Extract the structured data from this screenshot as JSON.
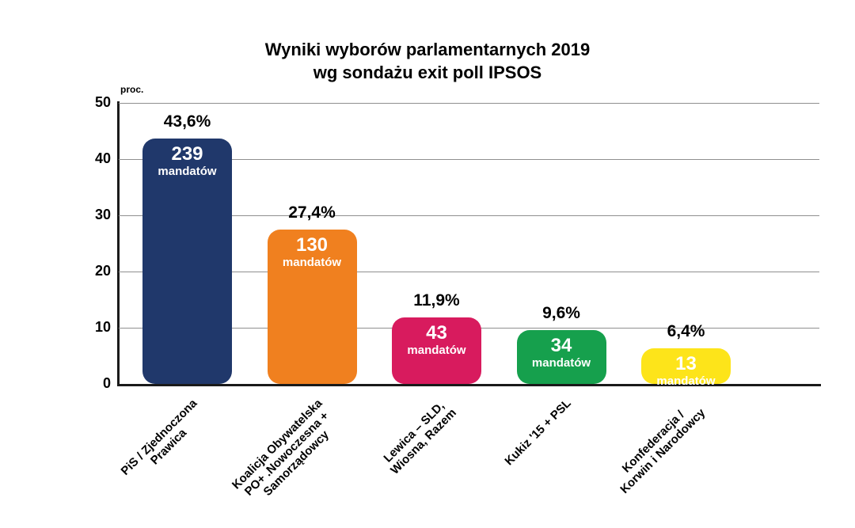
{
  "title": {
    "line1": "Wyniki wyborów parlamentarnych 2019",
    "line2": "wg sondażu exit poll IPSOS"
  },
  "y_axis_unit": "proc.",
  "chart_data": {
    "type": "bar",
    "title": "Wyniki wyborów parlamentarnych 2019 wg sondażu exit poll IPSOS",
    "ylabel": "proc.",
    "xlabel": "",
    "ylim": [
      0,
      50
    ],
    "yticks": [
      0,
      10,
      20,
      30,
      40,
      50
    ],
    "grid": true,
    "legend": false,
    "bars": [
      {
        "category_lines": [
          "PiS / Zjednoczona",
          "Prawica"
        ],
        "percent": 43.6,
        "percent_label": "43,6%",
        "mandates": 239,
        "mandates_label": "239",
        "mandates_unit": "mandatów",
        "color": "#20386b"
      },
      {
        "category_lines": [
          "Koalicja Obywatelska",
          "PO+ .Nowoczesna +",
          "Samorządowcy"
        ],
        "percent": 27.4,
        "percent_label": "27,4%",
        "mandates": 130,
        "mandates_label": "130",
        "mandates_unit": "mandatów",
        "color": "#f0801f"
      },
      {
        "category_lines": [
          "Lewica – SLD,",
          "Wiosna, Razem"
        ],
        "percent": 11.9,
        "percent_label": "11,9%",
        "mandates": 43,
        "mandates_label": "43",
        "mandates_unit": "mandatów",
        "color": "#d81b5e"
      },
      {
        "category_lines": [
          "Kukiz '15 + PSL"
        ],
        "percent": 9.6,
        "percent_label": "9,6%",
        "mandates": 34,
        "mandates_label": "34",
        "mandates_unit": "mandatów",
        "color": "#16a04d"
      },
      {
        "category_lines": [
          "Konfederacja /",
          "Korwin i Narodowcy"
        ],
        "percent": 6.4,
        "percent_label": "6,4%",
        "mandates": 13,
        "mandates_label": "13",
        "mandates_unit": "mandatów",
        "color": "#fde41a"
      }
    ]
  }
}
